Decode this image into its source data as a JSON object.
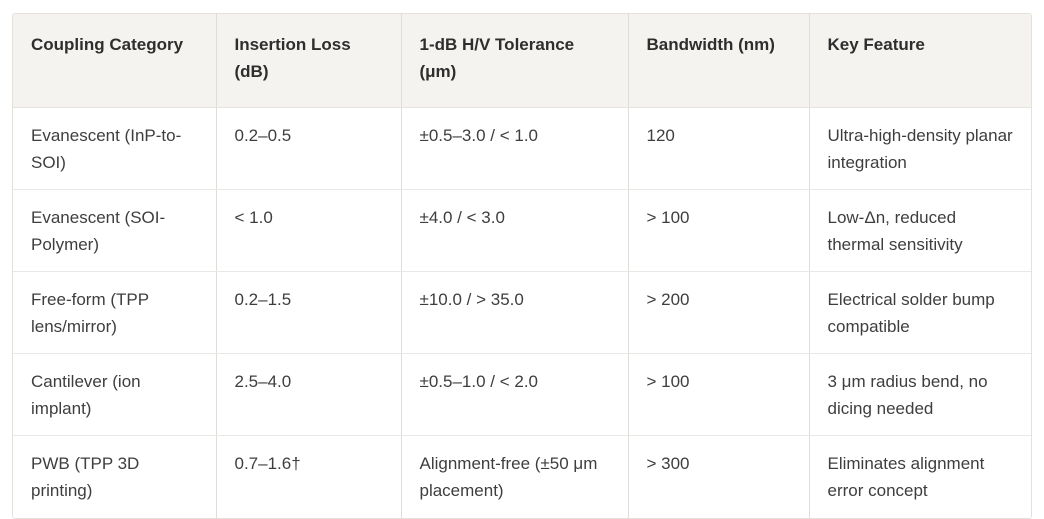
{
  "table": {
    "columns": [
      "Coupling Category",
      "Insertion Loss (dB)",
      "1-dB H/V Tolerance (μm)",
      "Bandwidth (nm)",
      "Key Feature"
    ],
    "rows": [
      [
        "Evanescent (InP-to-SOI)",
        "0.2–0.5",
        "±0.5–3.0 / < 1.0",
        "120",
        "Ultra-high-density planar integration"
      ],
      [
        "Evanescent (SOI-Polymer)",
        "< 1.0",
        "±4.0 / < 3.0",
        "> 100",
        "Low-Δn, reduced thermal sensitivity"
      ],
      [
        "Free-form (TPP lens/mirror)",
        "0.2–1.5",
        "±10.0 / > 35.0",
        "> 200",
        "Electrical solder bump compatible"
      ],
      [
        "Cantilever (ion implant)",
        "2.5–4.0",
        "±0.5–1.0 / < 2.0",
        "> 100",
        "3 μm radius bend, no dicing needed"
      ],
      [
        "PWB (TPP 3D printing)",
        "0.7–1.6†",
        "Alignment-free (±50 μm placement)",
        "> 300",
        "Eliminates alignment error concept"
      ]
    ]
  },
  "chart_data": {
    "type": "table",
    "title": "",
    "columns": [
      "Coupling Category",
      "Insertion Loss (dB)",
      "1-dB H/V Tolerance (μm)",
      "Bandwidth (nm)",
      "Key Feature"
    ],
    "rows": [
      {
        "coupling_category": "Evanescent (InP-to-SOI)",
        "insertion_loss_db": "0.2–0.5",
        "tolerance_um": "±0.5–3.0 / < 1.0",
        "bandwidth_nm": "120",
        "key_feature": "Ultra-high-density planar integration"
      },
      {
        "coupling_category": "Evanescent (SOI-Polymer)",
        "insertion_loss_db": "< 1.0",
        "tolerance_um": "±4.0 / < 3.0",
        "bandwidth_nm": "> 100",
        "key_feature": "Low-Δn, reduced thermal sensitivity"
      },
      {
        "coupling_category": "Free-form (TPP lens/mirror)",
        "insertion_loss_db": "0.2–1.5",
        "tolerance_um": "±10.0 / > 35.0",
        "bandwidth_nm": "> 200",
        "key_feature": "Electrical solder bump compatible"
      },
      {
        "coupling_category": "Cantilever (ion implant)",
        "insertion_loss_db": "2.5–4.0",
        "tolerance_um": "±0.5–1.0 / < 2.0",
        "bandwidth_nm": "> 100",
        "key_feature": "3 μm radius bend, no dicing needed"
      },
      {
        "coupling_category": "PWB (TPP 3D printing)",
        "insertion_loss_db": "0.7–1.6†",
        "tolerance_um": "Alignment-free (±50 μm placement)",
        "bandwidth_nm": "> 300",
        "key_feature": "Eliminates alignment error concept"
      }
    ]
  },
  "colors": {
    "header_background": "#f5f3ef",
    "body_background": "#ffffff",
    "header_text": "#2e2e2e",
    "body_text": "#3e3e3e",
    "outer_border": "#e4e1dc",
    "column_divider": "#e0ddd8",
    "row_divider": "#eae8e4"
  }
}
